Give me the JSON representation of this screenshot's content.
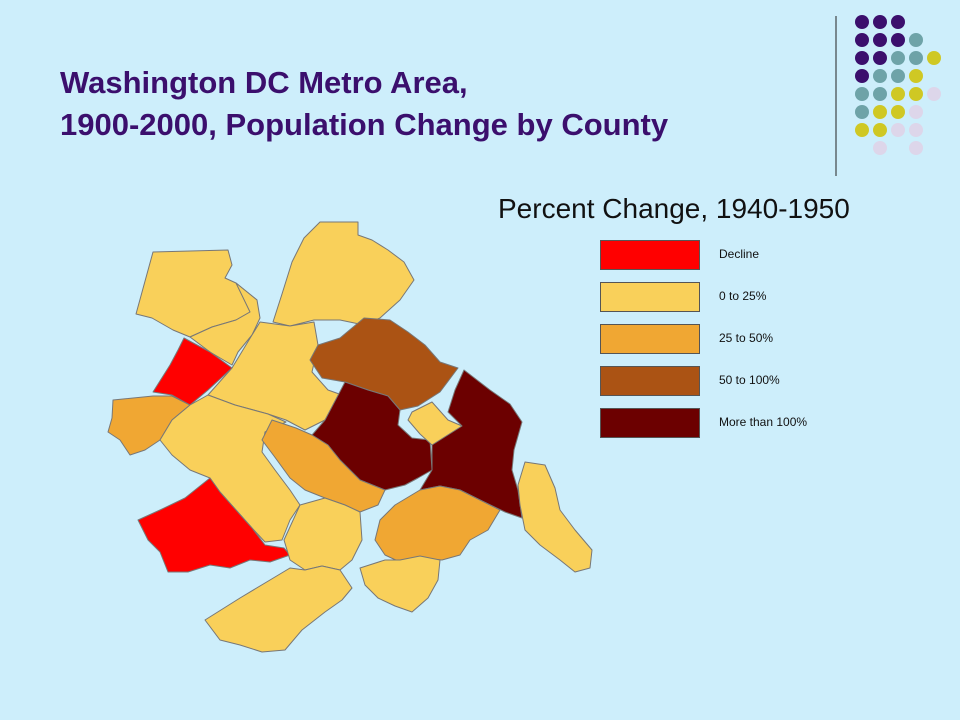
{
  "slide": {
    "title_line1": "Washington DC Metro Area,",
    "title_line2": "1900-2000, Population Change by County",
    "subtitle": "Percent Change, 1940-1950"
  },
  "legend": [
    {
      "label": "Decline",
      "color": "#ff0000"
    },
    {
      "label": "0 to 25%",
      "color": "#f9d05a"
    },
    {
      "label": "25 to 50%",
      "color": "#f0a733"
    },
    {
      "label": "50 to 100%",
      "color": "#ab5314"
    },
    {
      "label": "More than 100%",
      "color": "#6c0000"
    }
  ],
  "colors": {
    "background": "#cdeefb",
    "title": "#3b0f6d",
    "dot_purple": "#3b0f6d",
    "dot_teal": "#6ea3a8",
    "dot_olive": "#cfc824",
    "dot_lavender": "#ddd6ea"
  }
}
